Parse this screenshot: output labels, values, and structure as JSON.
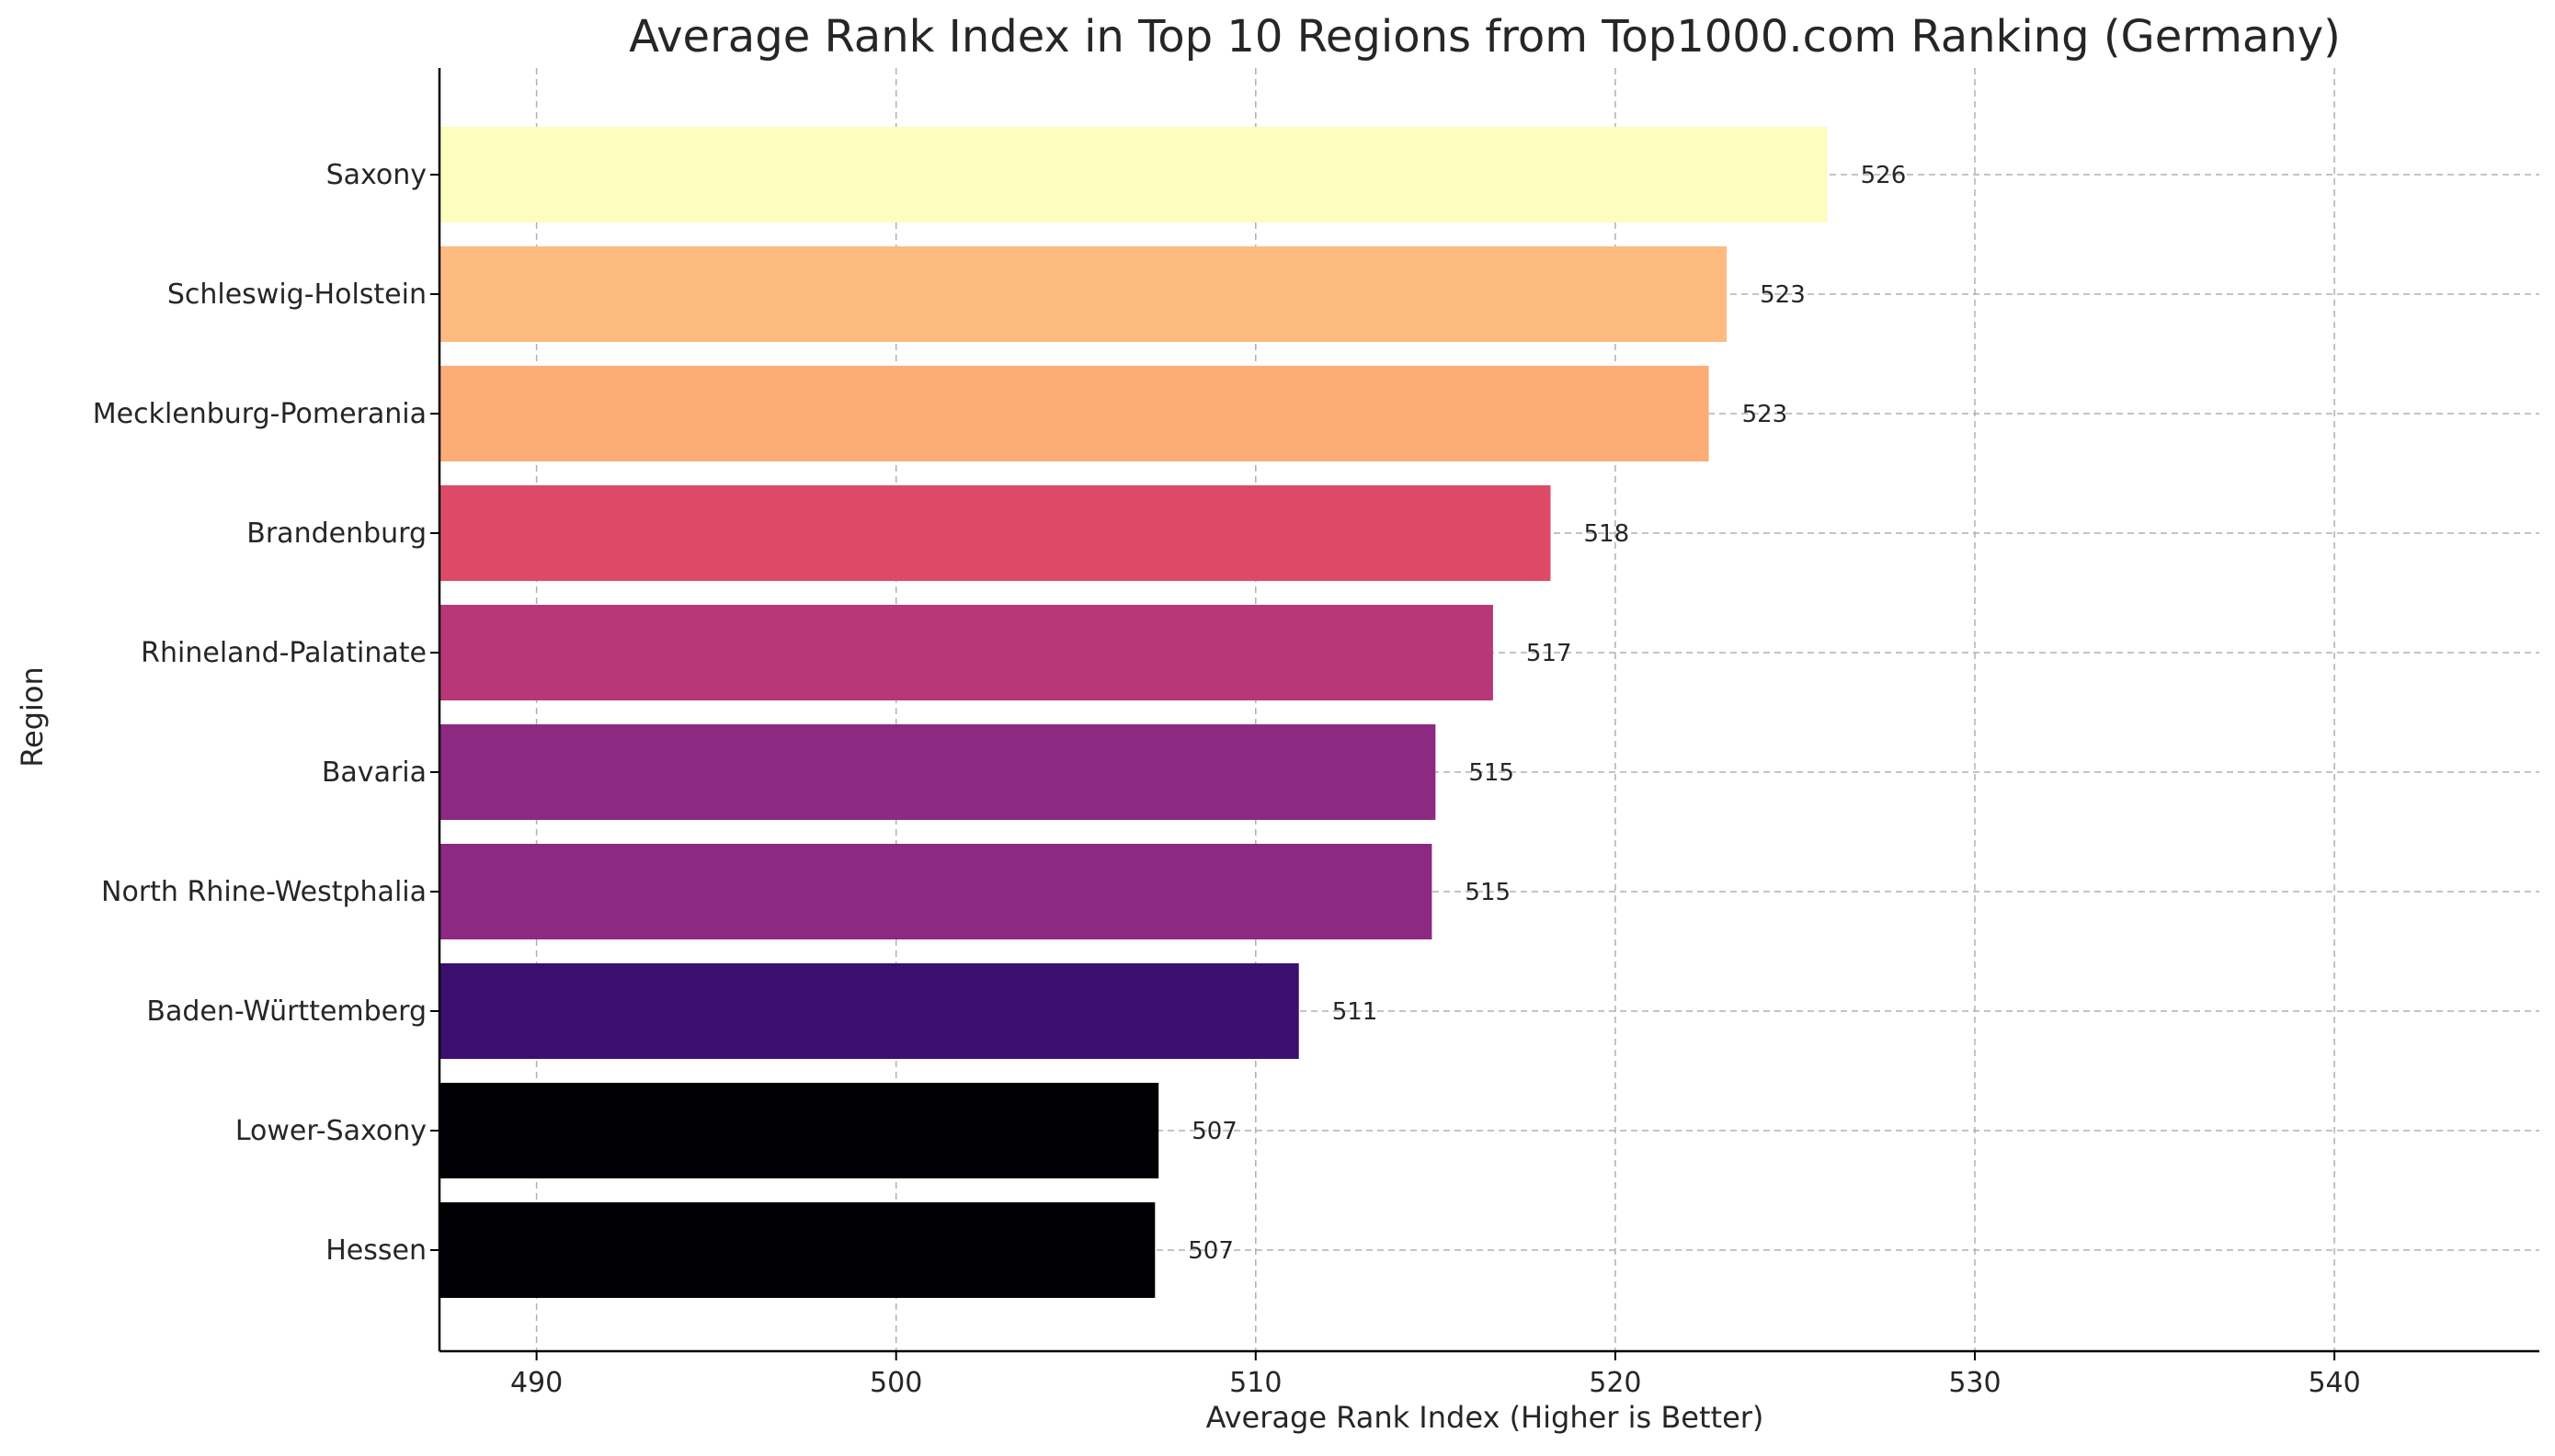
{
  "chart_data": {
    "type": "bar",
    "orientation": "horizontal",
    "title": "Average Rank Index in Top 10 Regions from Top1000.com Ranking (Germany)",
    "xlabel": "Average Rank Index (Higher is Better)",
    "ylabel": "Region",
    "xlim": [
      487.3,
      545.7
    ],
    "xticks": [
      490,
      500,
      510,
      520,
      530,
      540
    ],
    "grid": true,
    "categories": [
      "Saxony",
      "Schleswig-Holstein",
      "Mecklenburg-Pomerania",
      "Brandenburg",
      "Rhineland-Palatinate",
      "Bavaria",
      "North Rhine-Westphalia",
      "Baden-Württemberg",
      "Lower-Saxony",
      "Hessen"
    ],
    "values": [
      525.9,
      523.1,
      522.6,
      518.2,
      516.6,
      515.0,
      514.9,
      511.2,
      507.3,
      507.2
    ],
    "data_labels": [
      "526",
      "523",
      "523",
      "518",
      "517",
      "515",
      "515",
      "511",
      "507",
      "507"
    ],
    "colors": [
      "#fcfdbf",
      "#febb81",
      "#fcac76",
      "#dd4a68",
      "#b73779",
      "#8c2981",
      "#8c2981",
      "#3b0f70",
      "#000004",
      "#000004"
    ]
  }
}
